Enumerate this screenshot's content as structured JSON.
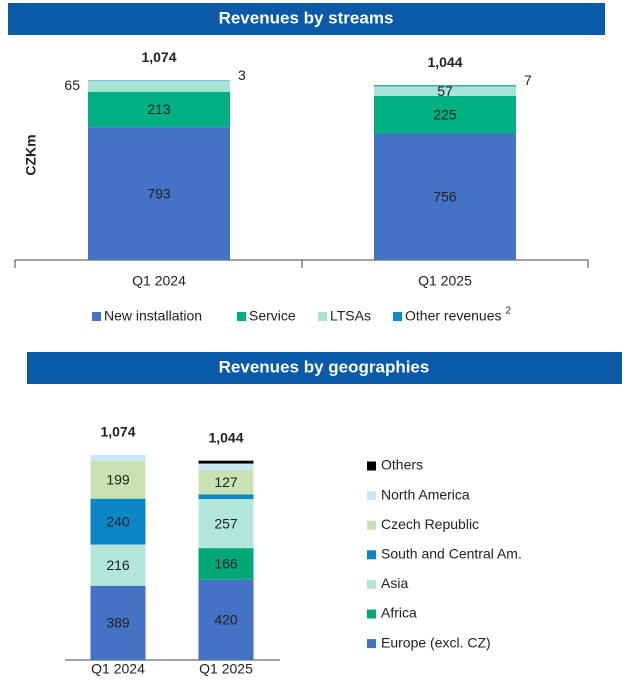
{
  "chart_data": [
    {
      "type": "bar",
      "stacked": true,
      "title": "Revenues by streams",
      "ylabel": "CZKm",
      "categories": [
        "Q1 2024",
        "Q1 2025"
      ],
      "series": [
        {
          "name": "New installation",
          "color": "#4472c4",
          "values": [
            793,
            756
          ]
        },
        {
          "name": "Service",
          "color": "#00b084",
          "values": [
            213,
            225
          ]
        },
        {
          "name": "LTSAs",
          "color": "#a8e4d4",
          "values": [
            65,
            57
          ]
        },
        {
          "name": "Other revenues",
          "color": "#1289c8",
          "values": [
            3,
            7
          ],
          "note": "2"
        }
      ],
      "totals": [
        1074,
        1044
      ],
      "total_labels": [
        "1,074",
        "1,044"
      ],
      "ylim": [
        0,
        1100
      ]
    },
    {
      "type": "bar",
      "stacked": true,
      "title": "Revenues by geographies",
      "categories": [
        "Q1 2024",
        "Q1 2025"
      ],
      "series": [
        {
          "name": "Europe (excl. CZ)",
          "color": "#4472c4",
          "values": [
            389,
            420
          ],
          "show_labels": [
            true,
            true
          ]
        },
        {
          "name": "Africa",
          "color": "#00a878",
          "values": [
            0,
            166
          ],
          "show_labels": [
            false,
            true
          ]
        },
        {
          "name": "Asia",
          "color": "#b2e6da",
          "values": [
            216,
            257
          ],
          "show_labels": [
            true,
            true
          ]
        },
        {
          "name": "South and Central Am.",
          "color": "#0d86c6",
          "values": [
            240,
            25
          ],
          "show_labels": [
            true,
            false
          ]
        },
        {
          "name": "Czech Republic",
          "color": "#c8e2b4",
          "values": [
            199,
            127
          ],
          "show_labels": [
            true,
            true
          ]
        },
        {
          "name": "North America",
          "color": "#c9e8f5",
          "values": [
            30,
            34
          ],
          "show_labels": [
            false,
            false
          ]
        },
        {
          "name": "Others",
          "color": "#000000",
          "values": [
            0,
            15
          ],
          "show_labels": [
            false,
            false
          ]
        }
      ],
      "totals": [
        1074,
        1044
      ],
      "total_labels": [
        "1,074",
        "1,044"
      ],
      "ylim": [
        0,
        1100
      ]
    }
  ]
}
